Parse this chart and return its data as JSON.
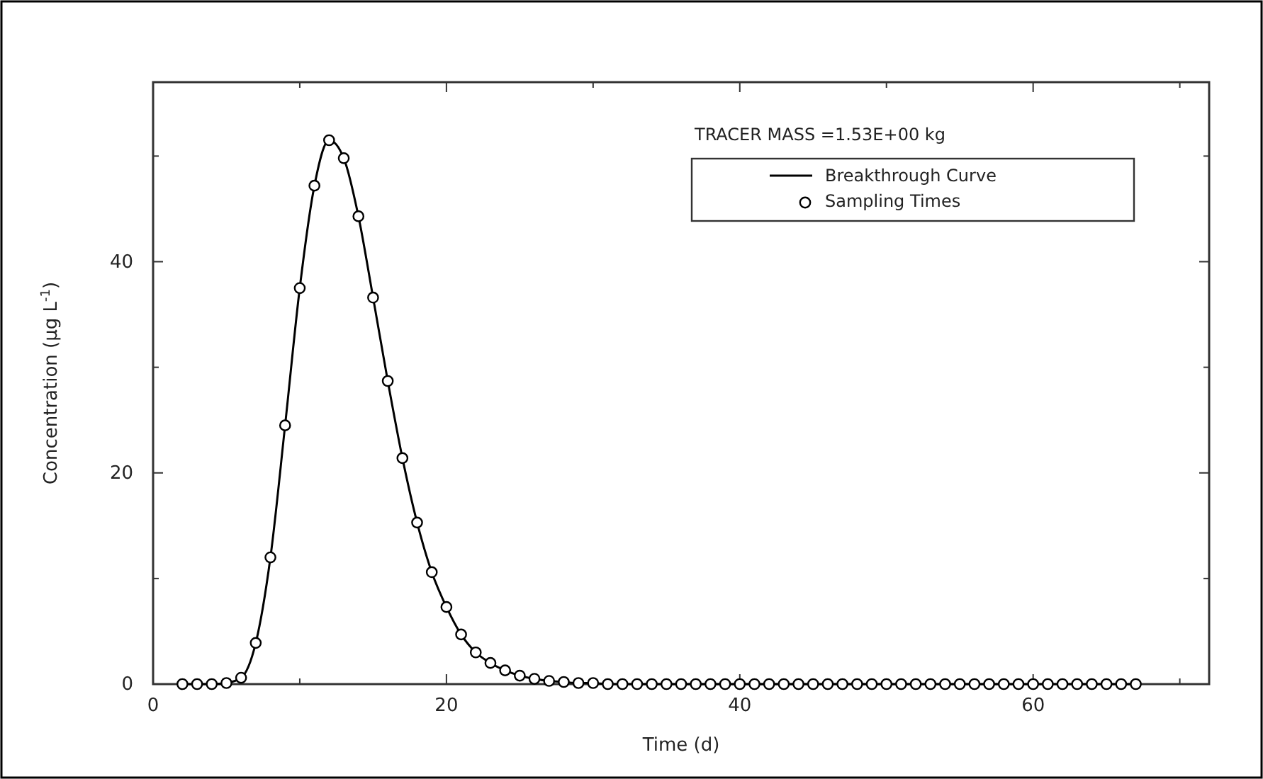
{
  "chart_data": {
    "type": "line",
    "xlabel": "Time (d)",
    "ylabel": "Concentration (μg L$^{-1}$)",
    "annotations": [
      "TRACER MASS =1.53E+00 kg"
    ],
    "xlim": [
      0,
      72
    ],
    "ylim": [
      0,
      57
    ],
    "xticks": [
      0,
      {
        "value": 10,
        "label": null
      },
      20,
      {
        "value": 30,
        "label": null
      },
      40,
      {
        "value": 50,
        "label": null
      },
      60,
      {
        "value": 70,
        "label": null
      }
    ],
    "yticks": [
      0,
      {
        "value": 10,
        "label": null
      },
      20,
      {
        "value": 30,
        "label": null
      },
      40,
      {
        "value": 50,
        "label": null
      }
    ],
    "legend": "top right",
    "grid": false,
    "x": [
      2,
      3,
      4,
      5,
      6,
      7,
      8,
      9,
      10,
      11,
      12,
      13,
      14,
      15,
      16,
      17,
      18,
      19,
      20,
      21,
      22,
      23,
      24,
      25,
      26,
      27,
      28,
      29,
      30,
      31,
      32,
      33,
      34,
      35,
      36,
      37,
      38,
      39,
      40,
      41,
      42,
      43,
      44,
      45,
      46,
      47,
      48,
      49,
      50,
      51,
      52,
      53,
      54,
      55,
      56,
      57,
      58,
      59,
      60,
      61,
      62,
      63,
      64,
      65,
      66,
      67
    ],
    "series": [
      {
        "name": "Breakthrough Curve",
        "type": "line",
        "color": "#000000",
        "marker": "none",
        "line_style": "solid",
        "values": [
          0,
          0,
          0,
          0.1,
          0.6,
          3.9,
          12,
          24.5,
          37.5,
          47.2,
          51.5,
          49.8,
          44.3,
          36.6,
          28.7,
          21.4,
          15.3,
          10.6,
          7.3,
          4.7,
          3,
          2,
          1.3,
          0.8,
          0.5,
          0.3,
          0.2,
          0.1,
          0.1,
          0,
          0,
          0,
          0,
          0,
          0,
          0,
          0,
          0,
          0,
          0,
          0,
          0,
          0,
          0,
          0,
          0,
          0,
          0,
          0,
          0,
          0,
          0,
          0,
          0,
          0,
          0,
          0,
          0,
          0,
          0,
          0,
          0,
          0,
          0,
          0,
          0
        ]
      },
      {
        "name": "Sampling Times",
        "type": "scatter",
        "color": "#000000",
        "marker": "circle",
        "values": [
          0,
          0,
          0,
          0.1,
          0.6,
          3.9,
          12,
          24.5,
          37.5,
          47.2,
          51.5,
          49.8,
          44.3,
          36.6,
          28.7,
          21.4,
          15.3,
          10.6,
          7.3,
          4.7,
          3,
          2,
          1.3,
          0.8,
          0.5,
          0.3,
          0.2,
          0.1,
          0.1,
          0,
          0,
          0,
          0,
          0,
          0,
          0,
          0,
          0,
          0,
          0,
          0,
          0,
          0,
          0,
          0,
          0,
          0,
          0,
          0,
          0,
          0,
          0,
          0,
          0,
          0,
          0,
          0,
          0,
          0,
          0,
          0,
          0,
          0,
          0,
          0,
          0
        ]
      }
    ]
  }
}
